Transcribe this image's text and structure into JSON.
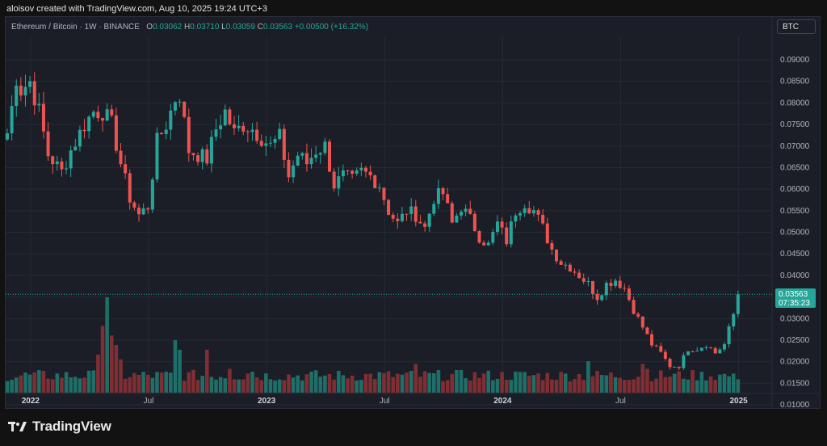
{
  "credit": "aloisov created with TradingView.com, Aug 10, 2025 19:24 UTC+3",
  "legend": {
    "symbol": "Ethereum / Bitcoin · 1W · BINANCE",
    "o_label": "O",
    "o_value": "0.03062",
    "h_label": "H",
    "h_value": "0.03710",
    "l_label": "L",
    "l_value": "0.03059",
    "c_label": "C",
    "c_value": "0.03563",
    "change": "+0.00500 (+16.32%)"
  },
  "currency": "BTC",
  "price_tag": {
    "price": "0.03563",
    "countdown": "07:35:23"
  },
  "brand": {
    "name": "TradingView"
  },
  "colors": {
    "up": "#26a69a",
    "down": "#ef5350",
    "up_volume": "#1f6e67",
    "down_volume": "#7f2f33"
  },
  "chart_data": {
    "type": "candlestick",
    "symbol": "ETHBTC",
    "interval": "1W",
    "ylim": [
      0.0075,
      0.093
    ],
    "y_ticks": [
      "0.09000",
      "0.08500",
      "0.08000",
      "0.07500",
      "0.07000",
      "0.06500",
      "0.06000",
      "0.05500",
      "0.05000",
      "0.04500",
      "0.04000",
      "0.03500",
      "0.03000",
      "0.02500",
      "0.02000",
      "0.01500",
      "0.01000"
    ],
    "x_ticks": [
      {
        "label": "2022",
        "bold": true,
        "week": 3
      },
      {
        "label": "Jul",
        "bold": false,
        "week": 29
      },
      {
        "label": "2023",
        "bold": true,
        "week": 55
      },
      {
        "label": "Jul",
        "bold": false,
        "week": 81
      },
      {
        "label": "2024",
        "bold": true,
        "week": 107
      },
      {
        "label": "Jul",
        "bold": false,
        "week": 133
      },
      {
        "label": "2025",
        "bold": true,
        "week": 159
      },
      {
        "label": "Jul",
        "bold": false,
        "week": 185
      }
    ],
    "last_price": 0.03563,
    "anchors": [
      [
        0,
        0.073
      ],
      [
        1,
        0.079
      ],
      [
        2,
        0.086
      ],
      [
        3,
        0.083
      ],
      [
        5,
        0.085
      ],
      [
        7,
        0.078
      ],
      [
        9,
        0.068
      ],
      [
        12,
        0.064
      ],
      [
        14,
        0.069
      ],
      [
        17,
        0.075
      ],
      [
        19,
        0.078
      ],
      [
        21,
        0.078
      ],
      [
        23,
        0.075
      ],
      [
        25,
        0.066
      ],
      [
        27,
        0.058
      ],
      [
        29,
        0.054
      ],
      [
        31,
        0.056
      ],
      [
        33,
        0.071
      ],
      [
        35,
        0.075
      ],
      [
        37,
        0.081
      ],
      [
        38,
        0.082
      ],
      [
        40,
        0.069
      ],
      [
        42,
        0.068
      ],
      [
        44,
        0.067
      ],
      [
        46,
        0.074
      ],
      [
        48,
        0.078
      ],
      [
        50,
        0.073
      ],
      [
        52,
        0.075
      ],
      [
        54,
        0.074
      ],
      [
        56,
        0.072
      ],
      [
        58,
        0.07
      ],
      [
        60,
        0.072
      ],
      [
        62,
        0.063
      ],
      [
        64,
        0.068
      ],
      [
        66,
        0.066
      ],
      [
        68,
        0.069
      ],
      [
        70,
        0.07
      ],
      [
        72,
        0.061
      ],
      [
        74,
        0.063
      ],
      [
        76,
        0.062
      ],
      [
        78,
        0.064
      ],
      [
        80,
        0.063
      ],
      [
        82,
        0.061
      ],
      [
        84,
        0.055
      ],
      [
        86,
        0.052
      ],
      [
        88,
        0.055
      ],
      [
        90,
        0.054
      ],
      [
        92,
        0.051
      ],
      [
        94,
        0.058
      ],
      [
        96,
        0.059
      ],
      [
        98,
        0.052
      ],
      [
        100,
        0.056
      ],
      [
        102,
        0.053
      ],
      [
        104,
        0.049
      ],
      [
        106,
        0.047
      ],
      [
        108,
        0.052
      ],
      [
        110,
        0.048
      ],
      [
        112,
        0.055
      ],
      [
        114,
        0.057
      ],
      [
        116,
        0.055
      ],
      [
        118,
        0.051
      ],
      [
        120,
        0.046
      ],
      [
        122,
        0.043
      ],
      [
        124,
        0.042
      ],
      [
        126,
        0.04
      ],
      [
        128,
        0.038
      ],
      [
        130,
        0.035
      ],
      [
        132,
        0.038
      ],
      [
        134,
        0.039
      ],
      [
        136,
        0.037
      ],
      [
        138,
        0.032
      ],
      [
        140,
        0.028
      ],
      [
        142,
        0.024
      ],
      [
        144,
        0.022
      ],
      [
        146,
        0.019
      ],
      [
        148,
        0.019
      ],
      [
        150,
        0.023
      ],
      [
        152,
        0.023
      ],
      [
        154,
        0.024
      ],
      [
        156,
        0.022
      ],
      [
        158,
        0.024
      ],
      [
        160,
        0.031
      ],
      [
        161,
        0.0356
      ]
    ],
    "volume_spikes": [
      [
        20,
        0.4
      ],
      [
        21,
        0.7
      ],
      [
        22,
        1.0
      ],
      [
        23,
        0.6
      ],
      [
        24,
        0.5
      ],
      [
        25,
        0.35
      ],
      [
        37,
        0.55
      ],
      [
        38,
        0.45
      ],
      [
        44,
        0.45
      ],
      [
        49,
        0.25
      ],
      [
        53,
        0.2
      ],
      [
        54,
        0.22
      ],
      [
        90,
        0.3
      ],
      [
        128,
        0.33
      ],
      [
        140,
        0.3
      ],
      [
        141,
        0.25
      ],
      [
        160,
        0.2
      ]
    ]
  }
}
